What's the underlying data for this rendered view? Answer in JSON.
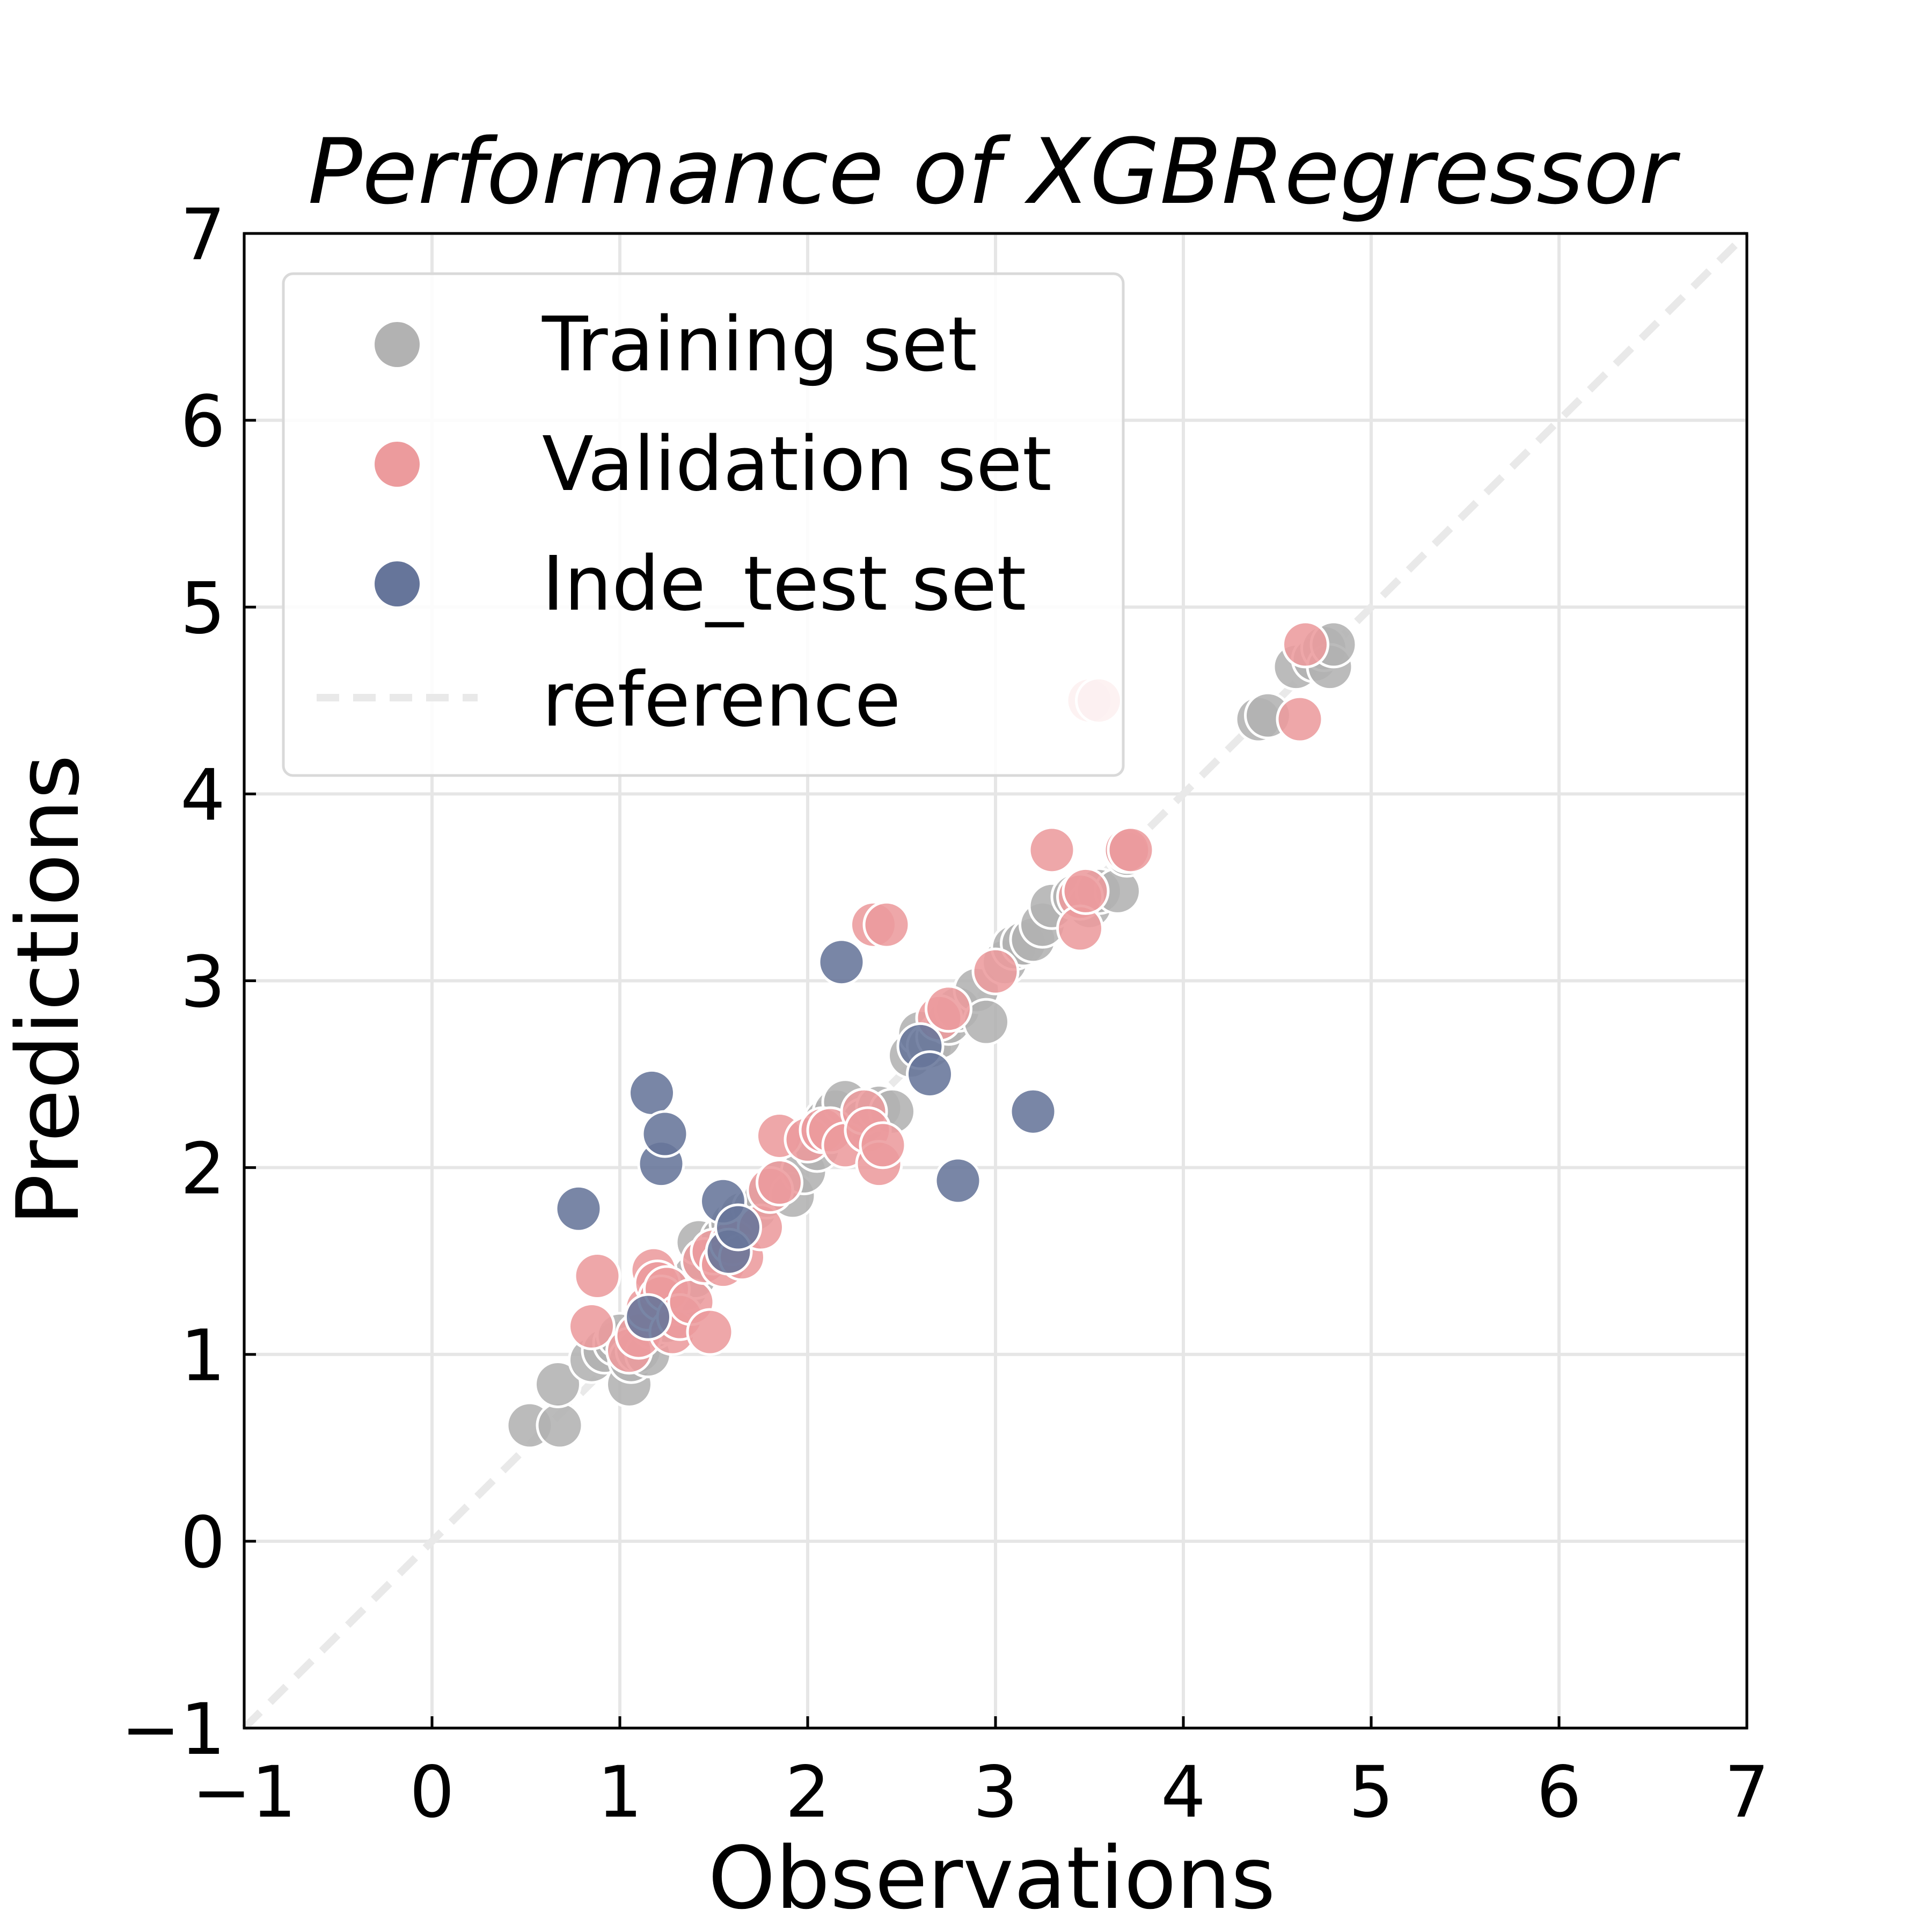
{
  "chart_data": {
    "type": "scatter",
    "title": "Performance of XGBRegressor",
    "xlabel": "Observations",
    "ylabel": "Predictions",
    "xlim": [
      -1,
      7
    ],
    "ylim": [
      -1,
      7
    ],
    "xticks": [
      "−1",
      "0",
      "1",
      "2",
      "3",
      "4",
      "5",
      "6",
      "7"
    ],
    "yticks": [
      "−1",
      "0",
      "1",
      "2",
      "3",
      "4",
      "5",
      "6",
      "7"
    ],
    "grid": true,
    "legend_position": "top-left",
    "series": [
      {
        "name": "Training set",
        "color": "#b2b2b2",
        "points": [
          [
            0.52,
            0.62
          ],
          [
            0.68,
            0.62
          ],
          [
            0.67,
            0.84
          ],
          [
            0.85,
            0.97
          ],
          [
            0.92,
            1.02
          ],
          [
            0.98,
            1.06
          ],
          [
            1.0,
            1.1
          ],
          [
            1.05,
            0.84
          ],
          [
            1.06,
            0.97
          ],
          [
            1.1,
            1.02
          ],
          [
            1.15,
            1.0
          ],
          [
            1.18,
            1.15
          ],
          [
            1.22,
            1.25
          ],
          [
            1.25,
            1.18
          ],
          [
            1.3,
            1.28
          ],
          [
            1.35,
            1.35
          ],
          [
            1.4,
            1.42
          ],
          [
            1.45,
            1.5
          ],
          [
            1.42,
            1.6
          ],
          [
            1.5,
            1.55
          ],
          [
            1.55,
            1.62
          ],
          [
            1.6,
            1.7
          ],
          [
            1.65,
            1.75
          ],
          [
            1.72,
            1.78
          ],
          [
            1.78,
            1.85
          ],
          [
            1.85,
            1.92
          ],
          [
            1.92,
            1.85
          ],
          [
            1.98,
            1.98
          ],
          [
            2.05,
            2.1
          ],
          [
            2.1,
            2.25
          ],
          [
            2.15,
            2.3
          ],
          [
            2.2,
            2.35
          ],
          [
            2.3,
            2.25
          ],
          [
            2.38,
            2.32
          ],
          [
            2.45,
            2.3
          ],
          [
            2.55,
            2.6
          ],
          [
            2.6,
            2.72
          ],
          [
            2.65,
            2.65
          ],
          [
            2.7,
            2.7
          ],
          [
            2.75,
            2.78
          ],
          [
            2.8,
            2.85
          ],
          [
            2.9,
            2.95
          ],
          [
            2.95,
            2.78
          ],
          [
            3.05,
            3.1
          ],
          [
            3.1,
            3.18
          ],
          [
            3.15,
            3.2
          ],
          [
            3.2,
            3.22
          ],
          [
            3.25,
            3.3
          ],
          [
            3.3,
            3.4
          ],
          [
            3.42,
            3.45
          ],
          [
            3.5,
            3.4
          ],
          [
            3.55,
            3.48
          ],
          [
            3.65,
            3.48
          ],
          [
            3.7,
            3.68
          ],
          [
            4.4,
            4.4
          ],
          [
            4.45,
            4.42
          ],
          [
            4.6,
            4.68
          ],
          [
            4.7,
            4.72
          ],
          [
            4.75,
            4.78
          ],
          [
            4.78,
            4.68
          ],
          [
            4.8,
            4.8
          ]
        ]
      },
      {
        "name": "Validation set",
        "color": "#ec9b9d",
        "points": [
          [
            0.85,
            1.15
          ],
          [
            0.88,
            1.42
          ],
          [
            1.05,
            1.02
          ],
          [
            1.1,
            1.1
          ],
          [
            1.15,
            1.25
          ],
          [
            1.18,
            1.45
          ],
          [
            1.2,
            1.38
          ],
          [
            1.22,
            1.3
          ],
          [
            1.25,
            1.35
          ],
          [
            1.28,
            1.12
          ],
          [
            1.32,
            1.2
          ],
          [
            1.38,
            1.28
          ],
          [
            1.45,
            1.5
          ],
          [
            1.48,
            1.12
          ],
          [
            1.5,
            1.55
          ],
          [
            1.55,
            1.48
          ],
          [
            1.6,
            1.6
          ],
          [
            1.65,
            1.52
          ],
          [
            1.75,
            1.68
          ],
          [
            1.8,
            1.88
          ],
          [
            1.85,
            1.92
          ],
          [
            1.85,
            2.17
          ],
          [
            2.0,
            2.15
          ],
          [
            2.08,
            2.2
          ],
          [
            2.12,
            2.2
          ],
          [
            2.2,
            2.12
          ],
          [
            2.3,
            2.3
          ],
          [
            2.32,
            2.2
          ],
          [
            2.35,
            3.3
          ],
          [
            2.38,
            2.02
          ],
          [
            2.4,
            2.12
          ],
          [
            2.42,
            3.3
          ],
          [
            2.7,
            2.8
          ],
          [
            2.75,
            2.85
          ],
          [
            3.0,
            3.05
          ],
          [
            3.3,
            3.7
          ],
          [
            3.45,
            3.45
          ],
          [
            3.45,
            3.28
          ],
          [
            3.48,
            3.48
          ],
          [
            3.5,
            4.5
          ],
          [
            3.55,
            4.5
          ],
          [
            3.7,
            3.7
          ],
          [
            3.72,
            3.7
          ],
          [
            4.62,
            4.4
          ],
          [
            4.65,
            4.8
          ]
        ]
      },
      {
        "name": "Inde_test set",
        "color": "#66759a",
        "points": [
          [
            0.78,
            1.78
          ],
          [
            1.15,
            1.2
          ],
          [
            1.17,
            2.4
          ],
          [
            1.22,
            2.02
          ],
          [
            1.24,
            2.18
          ],
          [
            1.55,
            1.82
          ],
          [
            1.58,
            1.55
          ],
          [
            1.63,
            1.68
          ],
          [
            2.18,
            3.1
          ],
          [
            2.6,
            2.65
          ],
          [
            2.65,
            2.5
          ],
          [
            2.8,
            1.93
          ],
          [
            3.2,
            2.3
          ]
        ]
      }
    ],
    "reference": {
      "name": "reference",
      "from": [
        -1,
        -1
      ],
      "to": [
        7,
        7
      ],
      "style": "dashed",
      "color": "#e9e9e9"
    }
  }
}
